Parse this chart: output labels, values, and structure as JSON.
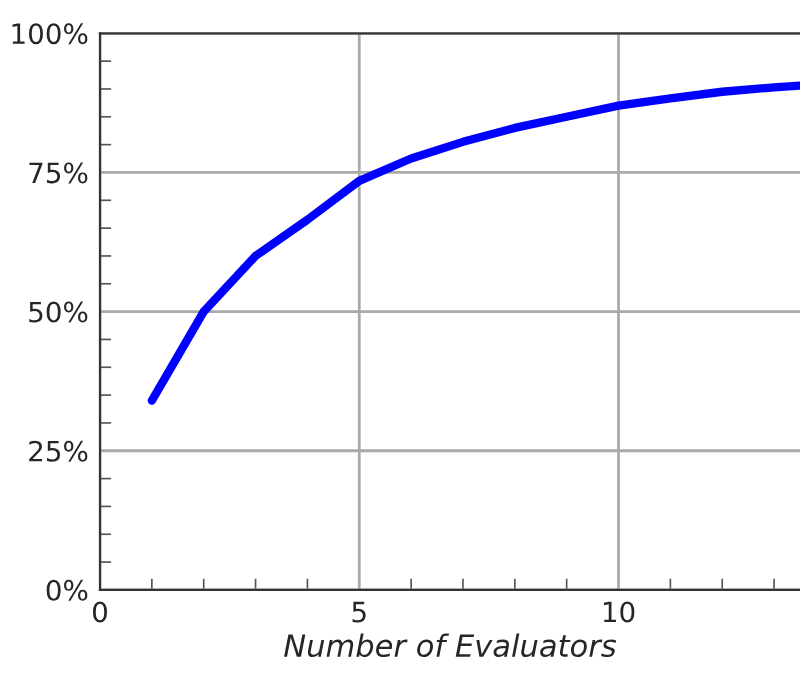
{
  "chart_data": {
    "type": "line",
    "xlabel": "Number of Evaluators",
    "x": [
      1,
      2,
      3,
      4,
      5,
      6,
      7,
      8,
      9,
      10,
      11,
      12,
      13,
      13.5
    ],
    "series": [
      {
        "color": "#0000ff",
        "values": [
          34,
          50,
          60,
          66.5,
          73.5,
          77.5,
          80.5,
          83,
          85,
          87,
          88.3,
          89.5,
          90.3,
          90.6
        ]
      }
    ],
    "xlim": [
      0,
      13.5
    ],
    "xticks": [
      0,
      5,
      10
    ],
    "ylim": [
      0,
      100
    ],
    "yticks": [
      {
        "value": 0,
        "label": "0%"
      },
      {
        "value": 25,
        "label": "25%"
      },
      {
        "value": 50,
        "label": "50%"
      },
      {
        "value": 75,
        "label": "75%"
      },
      {
        "value": 100,
        "label": "100%"
      }
    ],
    "grid": true,
    "legend": false,
    "marker": "none",
    "line_style": "solid"
  }
}
